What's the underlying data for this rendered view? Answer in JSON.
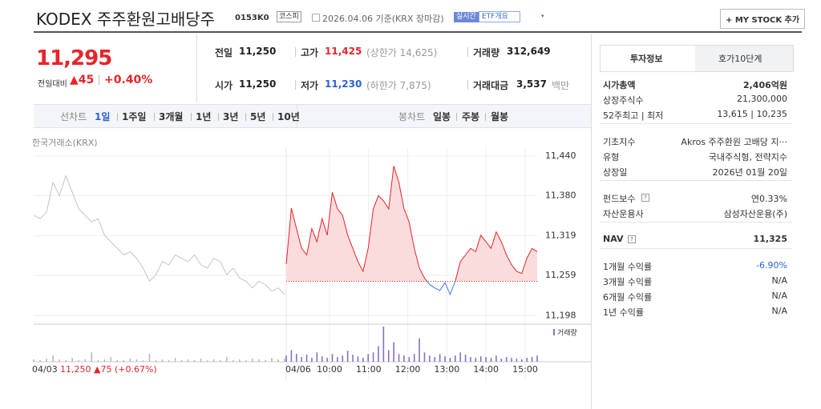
{
  "header": {
    "title": "KODEX 주주환원고배당주",
    "code": "0153K0",
    "market": "코스피",
    "date": "2026.04.06 기준(KRX 장마감)",
    "realtime": "실시간",
    "etf_info": "ETF개요",
    "my_stock": "+ MY STOCK 추가"
  },
  "price": {
    "current": "11,295",
    "change_label": "전일대비",
    "change": "▲45",
    "change_rate": "+0.40%"
  },
  "stats": [
    [
      {
        "label": "전일",
        "value": "11,250"
      },
      {
        "label": "고가",
        "value": "11,425",
        "extra": "(상한가 14,625)"
      },
      {
        "label": "거래량",
        "value": "312,649"
      }
    ],
    [
      {
        "label": "시가",
        "value": "11,250"
      },
      {
        "label": "저가",
        "value": "11,230",
        "extra": "(하한가 7,875)"
      },
      {
        "label": "거래대금",
        "value": "3,537",
        "extra": "백만"
      }
    ]
  ],
  "tabs": {
    "line_label": "선차트",
    "line": [
      "1일",
      "1주일",
      "3개월",
      "1년",
      "3년",
      "5년",
      "10년"
    ],
    "candle_label": "봉차트",
    "candle": [
      "일봉",
      "주봉",
      "월봉"
    ]
  },
  "chart": {
    "source": "한국거래소(KRX)",
    "ylim": [
      11185,
      11440
    ],
    "yticks": [
      {
        "value": 11440,
        "label": "11,440"
      },
      {
        "value": 11380,
        "label": "11,380"
      },
      {
        "value": 11319,
        "label": "11,319"
      },
      {
        "value": 11259,
        "label": "11,259"
      },
      {
        "value": 11198,
        "label": "11,198"
      }
    ],
    "prev_close": 11250,
    "previous": {
      "color": "#c4c4c4",
      "values": [
        11350,
        11345,
        11355,
        11400,
        11380,
        11410,
        11385,
        11360,
        11350,
        11340,
        11345,
        11320,
        11310,
        11300,
        11290,
        11295,
        11285,
        11270,
        11250,
        11260,
        11280,
        11275,
        11290,
        11285,
        11280,
        11290,
        11275,
        11270,
        11285,
        11280,
        11260,
        11270,
        11255,
        11250,
        11240,
        11250,
        11245,
        11235,
        11240,
        11230
      ]
    },
    "today": {
      "up_color": "#e8242a",
      "down_color": "#3b7be0",
      "fill": "#fbdcdc",
      "values": [
        11276,
        11361,
        11330,
        11300,
        11290,
        11330,
        11310,
        11345,
        11320,
        11385,
        11360,
        11350,
        11320,
        11300,
        11280,
        11265,
        11300,
        11360,
        11380,
        11372,
        11360,
        11425,
        11400,
        11360,
        11340,
        11300,
        11270,
        11255,
        11245,
        11240,
        11236,
        11248,
        11230,
        11250,
        11280,
        11290,
        11300,
        11295,
        11320,
        11310,
        11300,
        11325,
        11310,
        11290,
        11275,
        11265,
        11262,
        11285,
        11300,
        11295
      ]
    },
    "volume_legend": "거래량",
    "volume": {
      "previous_color": "#b8b8b8",
      "today_color": "#8a6fc4",
      "previous": [
        3,
        2,
        4,
        8,
        3,
        2,
        5,
        2,
        3,
        12,
        2,
        3,
        6,
        2,
        2,
        4,
        3,
        2,
        10,
        2,
        3,
        2,
        5,
        2,
        3,
        2,
        4,
        2,
        3,
        2,
        6,
        2,
        3,
        2,
        4,
        3,
        2,
        5,
        3,
        4
      ],
      "today": [
        8,
        15,
        10,
        6,
        9,
        5,
        12,
        7,
        5,
        10,
        6,
        8,
        14,
        9,
        7,
        5,
        10,
        12,
        20,
        45,
        15,
        25,
        10,
        8,
        6,
        10,
        30,
        12,
        8,
        6,
        10,
        7,
        5,
        8,
        12,
        9,
        6,
        5,
        7,
        6,
        5,
        8,
        4,
        6,
        5,
        4,
        3,
        5,
        6,
        8
      ]
    },
    "prev_date": "04/03",
    "prev_summary": "11,250 ▲75 (+0.67%)",
    "date": "04/06",
    "xticks": [
      "10:00",
      "11:00",
      "12:00",
      "13:00",
      "14:00",
      "15:00"
    ]
  },
  "sidebar": {
    "tabs": [
      "투자정보",
      "호가10단계"
    ],
    "groups": [
      [
        {
          "label": "시가총액",
          "value": "2,406억원"
        },
        {
          "label": "상장주식수",
          "value": "21,300,000"
        },
        {
          "label": "52주최고 | 최저",
          "value": "13,615 | 10,235"
        }
      ],
      [
        {
          "label": "기초지수",
          "value": "Akros 주주환원 고배당 지···"
        },
        {
          "label": "유형",
          "value": "국내주식형, 전략지수"
        },
        {
          "label": "상장일",
          "value": "2026년 01월 20일"
        }
      ],
      [
        {
          "label": "펀드보수",
          "value": "연0.33%"
        },
        {
          "label": "자산운용사",
          "value": "삼성자산운용(주)"
        }
      ],
      [
        {
          "label": "NAV",
          "value": "11,325"
        }
      ],
      [
        {
          "label": "1개월 수익률",
          "value": "-6.90%"
        },
        {
          "label": "3개월 수익률",
          "value": "N/A"
        },
        {
          "label": "6개월 수익률",
          "value": "N/A"
        },
        {
          "label": "1년 수익률",
          "value": "N/A"
        }
      ]
    ]
  }
}
